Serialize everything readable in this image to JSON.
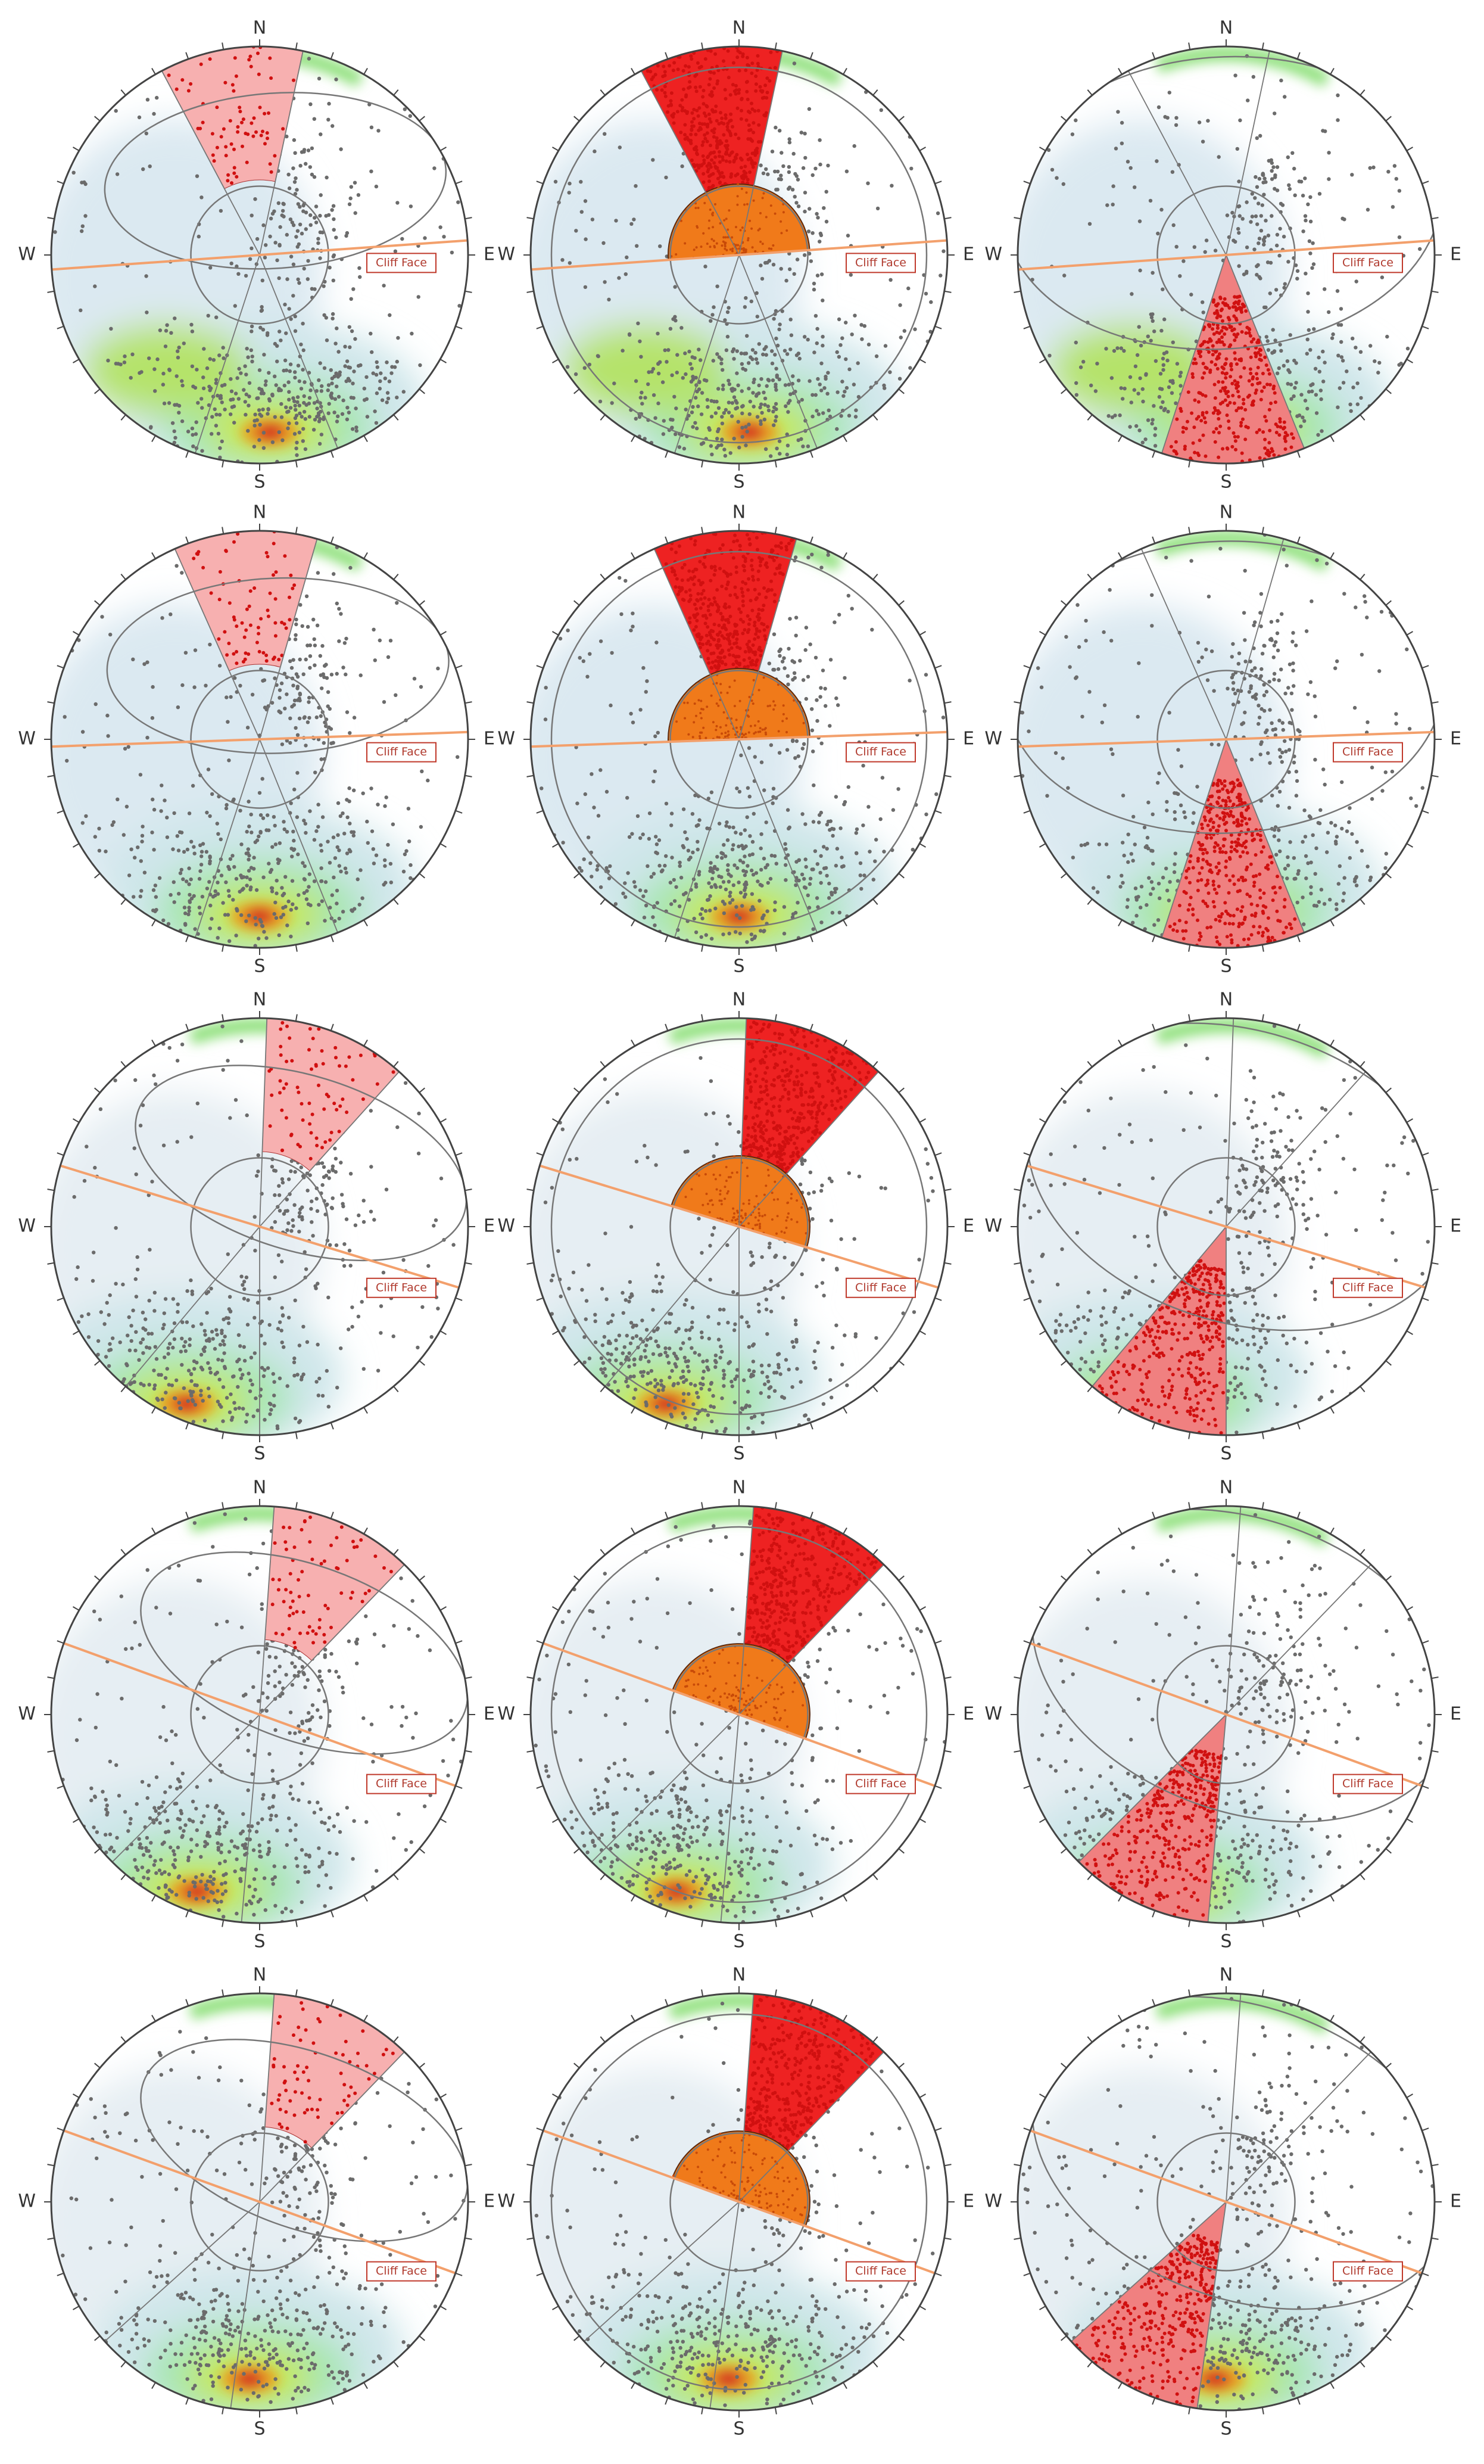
{
  "panels": [
    {
      "north": "N",
      "south": "S",
      "east": "E",
      "west": "W",
      "annotation": "Cliff Face"
    },
    {
      "north": "N",
      "south": "S",
      "east": "E",
      "west": "W",
      "annotation": "Cliff Face"
    },
    {
      "north": "N",
      "south": "S",
      "east": "E",
      "west": "W",
      "annotation": "Cliff Face"
    },
    {
      "north": "N",
      "south": "S",
      "east": "E",
      "west": "W",
      "annotation": "Cliff Face"
    },
    {
      "north": "N",
      "south": "S",
      "east": "E",
      "west": "W",
      "annotation": "Cliff Face"
    },
    {
      "north": "N",
      "south": "S",
      "east": "E",
      "west": "W",
      "annotation": "Cliff Face"
    },
    {
      "north": "N",
      "south": "S",
      "east": "E",
      "west": "W",
      "annotation": "Cliff Face"
    },
    {
      "north": "N",
      "south": "S",
      "east": "E",
      "west": "W",
      "annotation": "Cliff Face"
    },
    {
      "north": "N",
      "south": "S",
      "east": "E",
      "west": "W",
      "annotation": "Cliff Face"
    },
    {
      "north": "N",
      "south": "S",
      "east": "E",
      "west": "W",
      "annotation": "Cliff Face"
    },
    {
      "north": "N",
      "south": "S",
      "east": "E",
      "west": "W",
      "annotation": "Cliff Face"
    },
    {
      "north": "N",
      "south": "S",
      "east": "E",
      "west": "W",
      "annotation": "Cliff Face"
    },
    {
      "north": "N",
      "south": "S",
      "east": "E",
      "west": "W",
      "annotation": "Cliff Face"
    },
    {
      "north": "N",
      "south": "S",
      "east": "E",
      "west": "W",
      "annotation": "Cliff Face"
    },
    {
      "north": "N",
      "south": "S",
      "east": "E",
      "west": "W",
      "annotation": "Cliff Face"
    }
  ]
}
